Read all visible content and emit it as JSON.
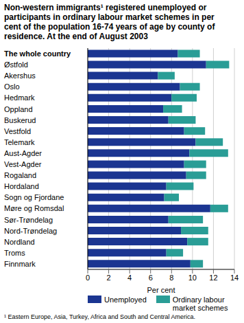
{
  "chart_data": {
    "type": "bar",
    "orientation": "horizontal",
    "stacked": true,
    "title": "Non-western immigrants¹ registered unemployed or participants in ordinary labour market schemes in per cent of the population 16-74 years of age by county of residence. At the end of August 2003",
    "x_label": "Per cent",
    "footnote": "¹ Eastern Europe, Asia, Turkey, Africa and South and Central America.",
    "categories": [
      "The whole country",
      "Østfold",
      "Akershus",
      "Oslo",
      "Hedmark",
      "Oppland",
      "Buskerud",
      "Vestfold",
      "Telemark",
      "Aust-Agder",
      "Vest-Agder",
      "Rogaland",
      "Hordaland",
      "Sogn og Fjordane",
      "Møre og Romsdal",
      "Sør-Trøndelag",
      "Nord-Trøndelag",
      "Nordland",
      "Troms",
      "Finnmark"
    ],
    "series": [
      {
        "name": "Unemployed",
        "color": "#1b3591",
        "values": [
          8.6,
          11.3,
          6.7,
          8.8,
          8.0,
          7.2,
          7.7,
          9.2,
          10.3,
          9.7,
          9.2,
          9.4,
          7.5,
          7.3,
          11.7,
          7.7,
          8.9,
          9.5,
          7.5,
          9.8
        ]
      },
      {
        "name": "Ordinary labour market schemes",
        "color": "#2a9d96",
        "values": [
          2.1,
          2.2,
          1.6,
          1.9,
          2.4,
          1.8,
          2.6,
          2.0,
          2.6,
          3.7,
          2.1,
          1.9,
          2.6,
          1.4,
          1.7,
          3.3,
          2.6,
          2.0,
          1.6,
          1.2
        ]
      }
    ],
    "xlim": [
      0,
      14
    ],
    "xticks": [
      0,
      2,
      4,
      6,
      8,
      10,
      12,
      14
    ],
    "grid": true,
    "legend": "bottom"
  }
}
